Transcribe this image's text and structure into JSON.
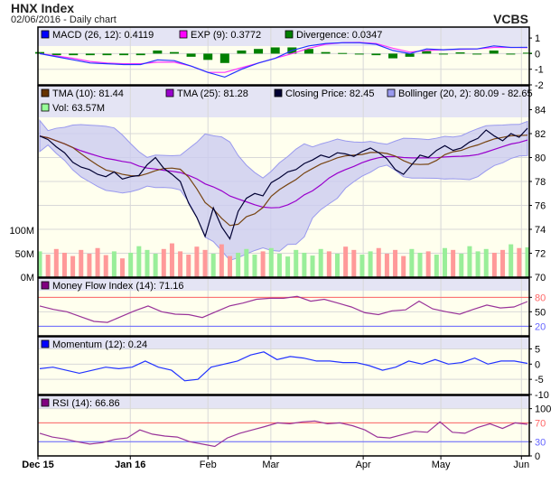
{
  "header": {
    "title": "HNX Index",
    "subtitle": "02/06/2016 - Daily chart",
    "brand": "VCBS"
  },
  "chart_data": [
    {
      "type": "line",
      "panel": "macd",
      "ylim": [
        -2,
        1.7
      ],
      "yticks": [
        "1",
        "0",
        "-1",
        "-2"
      ],
      "ytick_values": [
        1,
        0,
        -1,
        -2
      ],
      "legend": [
        {
          "label": "MACD (26, 12): 0.4119",
          "color": "#0000ff"
        },
        {
          "label": "EXP (9): 0.3772",
          "color": "#ff00ff"
        },
        {
          "label": "Divergence: 0.0347",
          "color": "#008000"
        }
      ],
      "macd": [
        0,
        -0.2,
        -0.4,
        -0.6,
        -0.65,
        -0.7,
        -0.7,
        -0.4,
        -0.45,
        -0.8,
        -1.2,
        -1.5,
        -1.0,
        -0.6,
        -0.3,
        0.2,
        0.5,
        0.65,
        0.7,
        0.7,
        0.6,
        0.2,
        0.0,
        0.3,
        0.25,
        0.3,
        0.3,
        0.5,
        0.4,
        0.41
      ],
      "signal": [
        0,
        -0.15,
        -0.3,
        -0.5,
        -0.6,
        -0.65,
        -0.65,
        -0.55,
        -0.55,
        -0.8,
        -1.2,
        -1.2,
        -0.9,
        -0.6,
        -0.3,
        0.0,
        0.35,
        0.6,
        0.7,
        0.72,
        0.65,
        0.35,
        0.1,
        0.2,
        0.25,
        0.28,
        0.3,
        0.4,
        0.4,
        0.38
      ],
      "divergence": [
        0.05,
        -0.05,
        -0.05,
        -0.05,
        -0.05,
        -0.05,
        -0.05,
        0.1,
        0.05,
        -0.1,
        -0.2,
        -0.3,
        0.1,
        0.15,
        0.2,
        0.2,
        0.15,
        0.05,
        0.02,
        0.0,
        -0.05,
        -0.15,
        -0.1,
        0.08,
        0.0,
        0.04,
        0.0,
        0.1,
        0.0,
        0.03
      ]
    },
    {
      "type": "line",
      "panel": "price",
      "ylim": [
        70,
        86
      ],
      "yticks": [
        "84",
        "82",
        "80",
        "78",
        "76",
        "74",
        "72",
        "70"
      ],
      "ytick_values": [
        84,
        82,
        80,
        78,
        76,
        74,
        72,
        70
      ],
      "legend": [
        {
          "label": "TMA (10): 81.44",
          "color": "#663300"
        },
        {
          "label": "TMA (25): 81.28",
          "color": "#9900cc"
        },
        {
          "label": "Closing Price: 82.45",
          "color": "#000033"
        },
        {
          "label": "Bollinger (20, 2): 80.09 - 82.65",
          "color": "#9999ee"
        },
        {
          "label": "Vol: 63.57M",
          "color": "#99ff99"
        }
      ],
      "close": [
        81.8,
        81.5,
        80.9,
        80.4,
        79.6,
        79.2,
        79.0,
        78.6,
        78.4,
        78.8,
        78.2,
        78.4,
        78.5,
        79.4,
        80.0,
        79.1,
        78.6,
        78.0,
        76.2,
        75.0,
        73.4,
        75.8,
        74.2,
        73.2,
        75.5,
        76.6,
        77.0,
        76.8,
        77.9,
        78.3,
        78.8,
        79.0,
        79.5,
        79.8,
        80.2,
        80.0,
        80.4,
        80.3,
        80.1,
        80.5,
        80.8,
        80.4,
        79.9,
        79.0,
        78.6,
        79.4,
        80.2,
        80.0,
        80.6,
        81.0,
        80.6,
        80.8,
        81.3,
        81.6,
        82.3,
        81.8,
        81.4,
        82.0,
        81.7,
        82.45
      ],
      "volume_ylabels": [
        "100M",
        "50M",
        "0M"
      ],
      "volume_tick_values": [
        100,
        50,
        0
      ],
      "volume": [
        55,
        48,
        60,
        52,
        45,
        58,
        50,
        62,
        47,
        55,
        40,
        52,
        66,
        58,
        50,
        60,
        72,
        55,
        48,
        65,
        58,
        50,
        70,
        45,
        52,
        60,
        48,
        55,
        62,
        50,
        44,
        58,
        52,
        46,
        60,
        55,
        50,
        65,
        58,
        48,
        55,
        62,
        50,
        58,
        45,
        60,
        52,
        55,
        48,
        62,
        58,
        50,
        66,
        55,
        60,
        52,
        58,
        70,
        62,
        63.57
      ]
    },
    {
      "type": "line",
      "panel": "mfi",
      "ylim": [
        0,
        120
      ],
      "yticks": [
        "80",
        "50",
        "20"
      ],
      "ytick_values": [
        80,
        50,
        20
      ],
      "levels": [
        80,
        20
      ],
      "legend": [
        {
          "label": "Money Flow Index (14): 71.16",
          "color": "#800080"
        }
      ],
      "values": [
        62,
        55,
        50,
        40,
        30,
        28,
        40,
        52,
        62,
        50,
        45,
        44,
        38,
        50,
        62,
        68,
        76,
        78,
        78,
        82,
        72,
        76,
        68,
        60,
        48,
        44,
        52,
        54,
        72,
        56,
        50,
        45,
        55,
        64,
        58,
        60,
        71.16
      ]
    },
    {
      "type": "line",
      "panel": "momentum",
      "ylim": [
        -10,
        9
      ],
      "yticks": [
        "5",
        "0",
        "-5",
        "-10"
      ],
      "ytick_values": [
        5,
        0,
        -5,
        -10
      ],
      "legend": [
        {
          "label": "Momentum (12): 0.24",
          "color": "#0000ff"
        }
      ],
      "values": [
        -1.5,
        -1,
        -2,
        -3,
        -2,
        -1,
        -1.5,
        -1,
        1,
        -1,
        -2,
        -5.5,
        -5,
        -1,
        0,
        1,
        3,
        4,
        1.5,
        2.5,
        2,
        1,
        1,
        0.5,
        0.5,
        -0.5,
        -2,
        -1,
        1,
        0,
        1.5,
        0,
        0.5,
        2,
        0,
        1,
        1,
        0.24
      ]
    },
    {
      "type": "line",
      "panel": "rsi",
      "ylim": [
        0,
        128
      ],
      "yticks": [
        "100",
        "70",
        "30",
        "0"
      ],
      "ytick_values": [
        100,
        70,
        30,
        0
      ],
      "levels": [
        70,
        30
      ],
      "legend": [
        {
          "label": "RSI (14): 66.86",
          "color": "#800080"
        }
      ],
      "values": [
        48,
        40,
        36,
        30,
        25,
        28,
        35,
        38,
        55,
        46,
        42,
        40,
        30,
        25,
        20,
        38,
        48,
        55,
        62,
        70,
        68,
        72,
        74,
        68,
        70,
        64,
        55,
        40,
        38,
        45,
        52,
        50,
        72,
        50,
        48,
        60,
        68,
        58,
        70,
        66.86
      ]
    }
  ],
  "x_axis": {
    "labels": [
      "Dec 15",
      "Jan 16",
      "Feb",
      "Mar",
      "Apr",
      "May",
      "Jun"
    ],
    "bold": [
      true,
      true,
      false,
      false,
      false,
      false,
      false
    ],
    "positions": [
      0,
      0.188,
      0.346,
      0.474,
      0.662,
      0.82,
      0.984
    ]
  }
}
